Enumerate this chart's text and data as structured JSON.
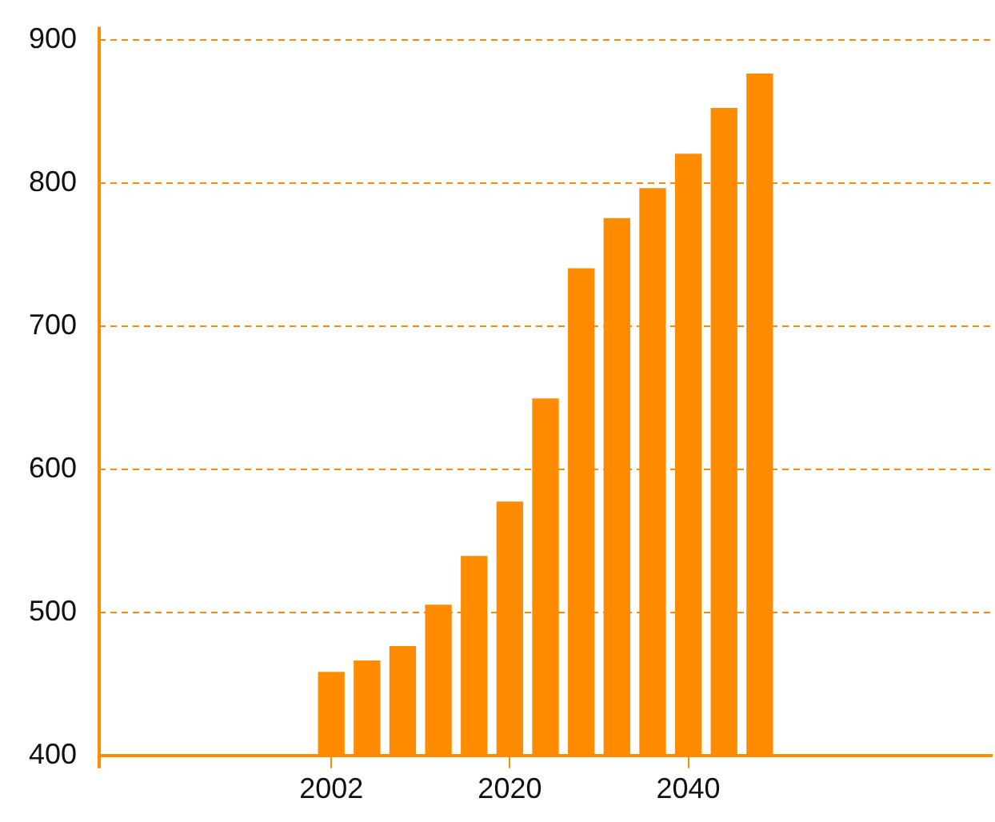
{
  "chart_data": {
    "type": "bar",
    "categories": [
      null,
      null,
      null,
      null,
      null,
      null,
      "2002",
      null,
      null,
      null,
      null,
      "2020",
      null,
      null,
      null,
      null,
      "2040",
      null,
      null,
      null,
      null,
      null,
      null,
      null,
      null
    ],
    "values": [
      null,
      null,
      null,
      null,
      null,
      null,
      458,
      466,
      476,
      505,
      539,
      577,
      649,
      740,
      775,
      796,
      820,
      852,
      876,
      null,
      null,
      null,
      null,
      null,
      null
    ],
    "color": "#ff8c00",
    "ylim": [
      400,
      900
    ],
    "yticks": [
      400,
      500,
      600,
      700,
      800,
      900
    ],
    "grid": "y",
    "legend": false
  }
}
